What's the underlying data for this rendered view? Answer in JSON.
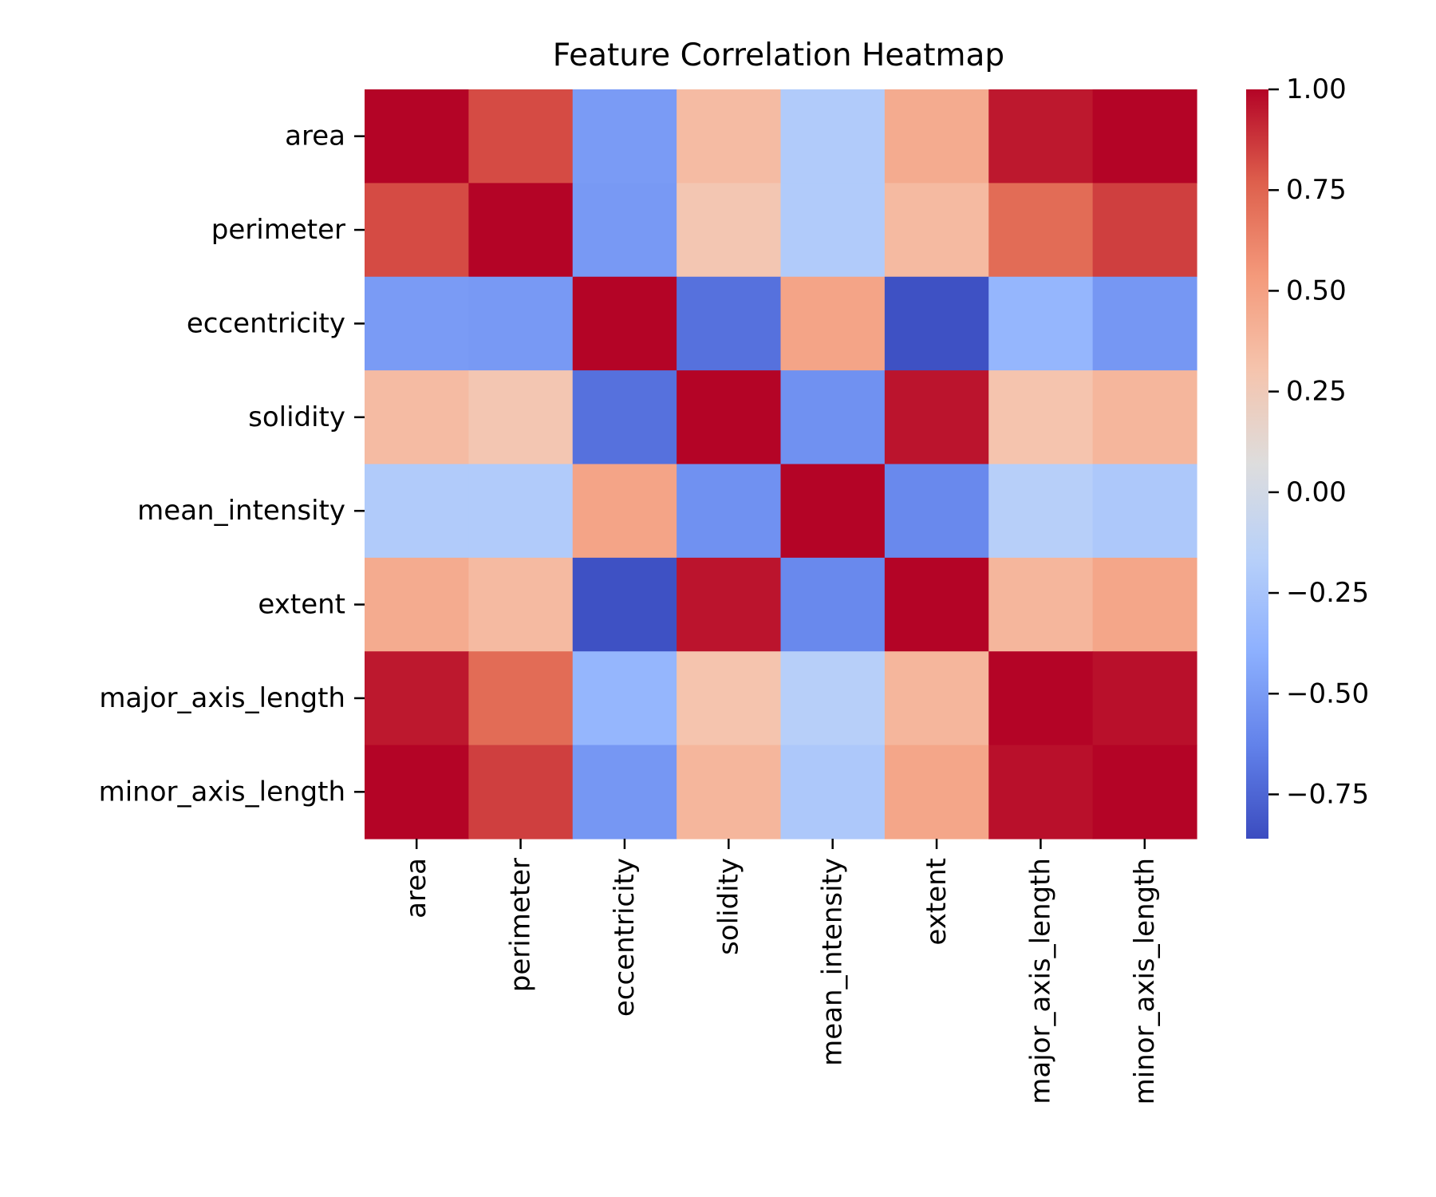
{
  "chart_data": {
    "type": "heatmap",
    "title": "Feature Correlation Heatmap",
    "xlabel": "",
    "ylabel": "",
    "labels": [
      "area",
      "perimeter",
      "eccentricity",
      "solidity",
      "mean_intensity",
      "extent",
      "major_axis_length",
      "minor_axis_length"
    ],
    "matrix": [
      [
        1.0,
        0.82,
        -0.5,
        0.35,
        -0.2,
        0.44,
        0.95,
        1.0
      ],
      [
        0.82,
        1.0,
        -0.51,
        0.28,
        -0.2,
        0.36,
        0.72,
        0.85
      ],
      [
        -0.5,
        -0.51,
        1.0,
        -0.7,
        0.48,
        -0.84,
        -0.35,
        -0.52
      ],
      [
        0.35,
        0.28,
        -0.7,
        1.0,
        -0.55,
        0.96,
        0.3,
        0.38
      ],
      [
        -0.2,
        -0.2,
        0.48,
        -0.55,
        1.0,
        -0.59,
        -0.17,
        -0.22
      ],
      [
        0.44,
        0.36,
        -0.84,
        0.96,
        -0.59,
        1.0,
        0.38,
        0.47
      ],
      [
        0.95,
        0.72,
        -0.35,
        0.3,
        -0.17,
        0.38,
        1.0,
        0.97
      ],
      [
        1.0,
        0.85,
        -0.52,
        0.38,
        -0.22,
        0.47,
        0.97,
        1.0
      ]
    ],
    "colorbar": {
      "colormap": "coolwarm",
      "vmin": -0.86,
      "vmax": 1.0,
      "ticks": [
        1.0,
        0.75,
        0.5,
        0.25,
        0.0,
        -0.25,
        -0.5,
        -0.75
      ],
      "tick_labels": [
        "1.00",
        "0.75",
        "0.50",
        "0.25",
        "0.00",
        "−0.25",
        "−0.50",
        "−0.75"
      ]
    },
    "grid": false,
    "legend": "colorbar-right"
  }
}
